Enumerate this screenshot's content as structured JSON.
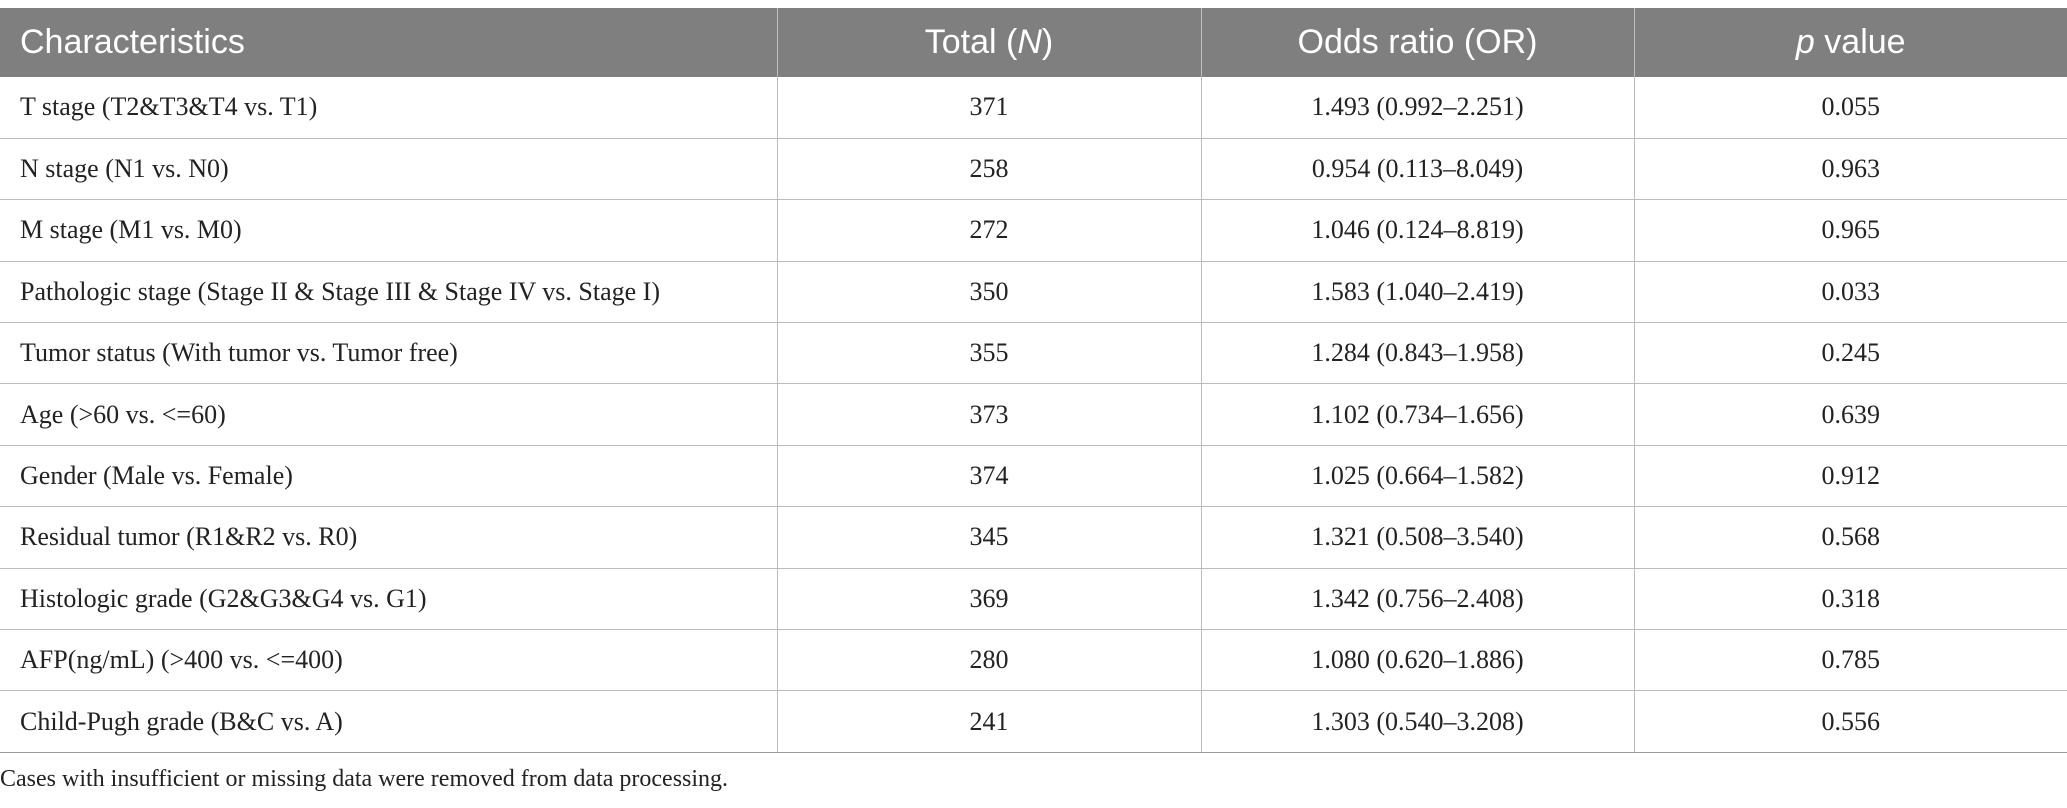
{
  "table": {
    "headers": {
      "characteristics": "Characteristics",
      "total_prefix": "Total (",
      "total_var": "N",
      "total_suffix": ")",
      "odds_ratio": "Odds ratio (OR)",
      "p_var": "p",
      "p_suffix": " value"
    },
    "rows": [
      {
        "characteristic": "T stage (T2&T3&T4 vs. T1)",
        "total": "371",
        "or": "1.493 (0.992–2.251)",
        "p": "0.055"
      },
      {
        "characteristic": "N stage (N1 vs. N0)",
        "total": "258",
        "or": "0.954 (0.113–8.049)",
        "p": "0.963"
      },
      {
        "characteristic": "M stage (M1 vs. M0)",
        "total": "272",
        "or": "1.046 (0.124–8.819)",
        "p": "0.965"
      },
      {
        "characteristic": "Pathologic stage (Stage II & Stage III & Stage IV vs. Stage I)",
        "total": "350",
        "or": "1.583 (1.040–2.419)",
        "p": "0.033"
      },
      {
        "characteristic": "Tumor status (With tumor vs. Tumor free)",
        "total": "355",
        "or": "1.284 (0.843–1.958)",
        "p": "0.245"
      },
      {
        "characteristic": "Age (>60 vs. <=60)",
        "total": "373",
        "or": "1.102 (0.734–1.656)",
        "p": "0.639"
      },
      {
        "characteristic": "Gender (Male vs. Female)",
        "total": "374",
        "or": "1.025 (0.664–1.582)",
        "p": "0.912"
      },
      {
        "characteristic": "Residual tumor (R1&R2 vs. R0)",
        "total": "345",
        "or": "1.321 (0.508–3.540)",
        "p": "0.568"
      },
      {
        "characteristic": "Histologic grade (G2&G3&G4 vs. G1)",
        "total": "369",
        "or": "1.342 (0.756–2.408)",
        "p": "0.318"
      },
      {
        "characteristic": "AFP(ng/mL) (>400 vs. <=400)",
        "total": "280",
        "or": "1.080 (0.620–1.886)",
        "p": "0.785"
      },
      {
        "characteristic": "Child-Pugh grade (B&C vs. A)",
        "total": "241",
        "or": "1.303 (0.540–3.208)",
        "p": "0.556"
      }
    ]
  },
  "footnote": "Cases with insufficient or missing data were removed from data processing."
}
